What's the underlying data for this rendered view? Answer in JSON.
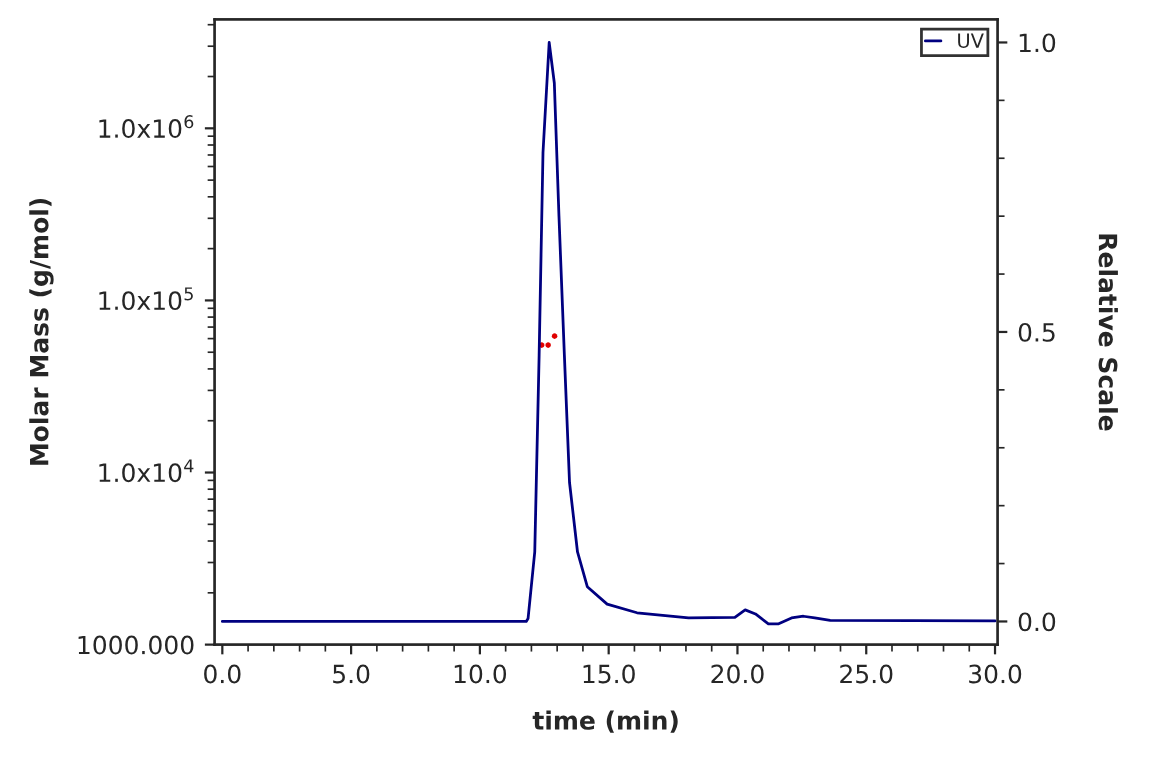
{
  "chart_data": {
    "type": "line",
    "xlabel": "time (min)",
    "ylabel": "Molar Mass (g/mol)",
    "y2label": "Relative Scale",
    "x": [
      0,
      11.8,
      11.87,
      12.13,
      12.3,
      12.45,
      12.69,
      12.89,
      13.07,
      13.28,
      13.48,
      13.79,
      14.17,
      14.94,
      16.1,
      18.1,
      19.9,
      20.3,
      20.7,
      21.2,
      21.6,
      22.1,
      22.56,
      23.0,
      23.6,
      30
    ],
    "series": [
      {
        "name": "UV",
        "axis": "y2",
        "color": "#000080",
        "marker": "none",
        "values": [
          0,
          0,
          0.005,
          0.12,
          0.46,
          0.81,
          1.0,
          0.93,
          0.7,
          0.46,
          0.24,
          0.12,
          0.06,
          0.03,
          0.015,
          0.006,
          0.007,
          0.02,
          0.013,
          -0.004,
          -0.004,
          0.006,
          0.009,
          0.006,
          0.002,
          0.001
        ]
      },
      {
        "type": "scatter",
        "axis": "y",
        "color": "#e00000",
        "marker": "circle",
        "x": [
          12.4,
          12.65,
          12.9
        ],
        "values": [
          55000,
          55000,
          62000
        ]
      }
    ],
    "log": "y",
    "xlim": [
      -0.3,
      30.1
    ],
    "xticks": [
      {
        "value": 0,
        "label": "0.0"
      },
      {
        "value": 5,
        "label": "5.0"
      },
      {
        "value": 10,
        "label": "10.0"
      },
      {
        "value": 15,
        "label": "15.0"
      },
      {
        "value": 20,
        "label": "20.0"
      },
      {
        "value": 25,
        "label": "25.0"
      },
      {
        "value": 30,
        "label": "30.0"
      }
    ],
    "ylim": [
      1000,
      4300000
    ],
    "yticks": [
      {
        "value": 1000,
        "label": "1000.000"
      },
      {
        "value": 10000,
        "label": "1.0x10$^{4}$"
      },
      {
        "value": 100000,
        "label": "1.0x10$^{5}$"
      },
      {
        "value": 1000000,
        "label": "1.0x10$^{6}$"
      }
    ],
    "y2lim": [
      -0.04,
      1.04
    ],
    "y2ticks": [
      {
        "value": 0,
        "label": "0.0"
      },
      {
        "value": 0.5,
        "label": "0.5"
      },
      {
        "value": 1,
        "label": "1.0"
      }
    ],
    "grid": false,
    "legend": "top right"
  }
}
